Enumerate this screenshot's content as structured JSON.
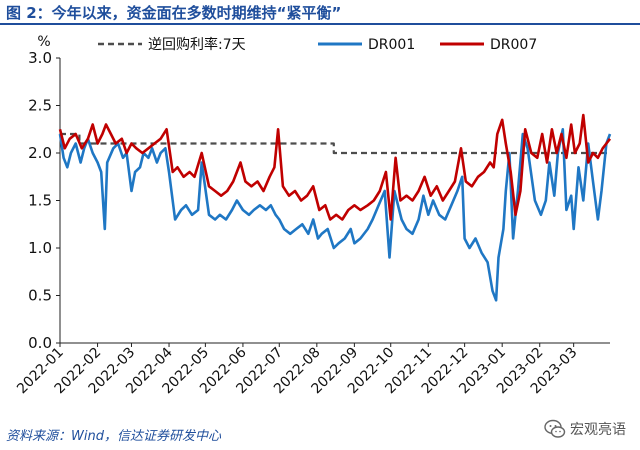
{
  "figure": {
    "title": "图 2：今年以来，资金面在多数时期维持“紧平衡”",
    "source": "资料来源：Wind，信达证券研发中心",
    "watermark": "宏观亮语",
    "watermark_icon": "wechat-icon"
  },
  "chart_data": {
    "type": "line",
    "unit_label": "%",
    "ylim": [
      0.0,
      3.0
    ],
    "yticks": [
      "0.0",
      "0.5",
      "1.0",
      "1.5",
      "2.0",
      "2.5",
      "3.0"
    ],
    "xlim": [
      "2022-01-01",
      "2023-03-31"
    ],
    "xticks": [
      "2022-01",
      "2022-02",
      "2022-03",
      "2022-04",
      "2022-05",
      "2022-06",
      "2022-07",
      "2022-08",
      "2022-09",
      "2022-10",
      "2022-11",
      "2022-12",
      "2023-01",
      "2023-02",
      "2023-03"
    ],
    "grid": false,
    "legend_position": "top",
    "series": [
      {
        "name": "逆回购利率:7天",
        "color": "#4d4d4d",
        "style": "dashed",
        "points": [
          [
            "2022-01-01",
            2.2
          ],
          [
            "2022-01-17",
            2.2
          ],
          [
            "2022-01-17",
            2.1
          ],
          [
            "2022-08-15",
            2.1
          ],
          [
            "2022-08-15",
            2.0
          ],
          [
            "2023-03-31",
            2.0
          ]
        ]
      },
      {
        "name": "DR001",
        "color": "#1f77c4",
        "style": "solid",
        "points": [
          [
            "2022-01-01",
            2.2
          ],
          [
            "2022-01-04",
            1.95
          ],
          [
            "2022-01-07",
            1.85
          ],
          [
            "2022-01-10",
            2.0
          ],
          [
            "2022-01-14",
            2.1
          ],
          [
            "2022-01-18",
            1.9
          ],
          [
            "2022-01-21",
            2.05
          ],
          [
            "2022-01-24",
            2.15
          ],
          [
            "2022-01-28",
            2.0
          ],
          [
            "2022-02-01",
            1.9
          ],
          [
            "2022-02-04",
            1.8
          ],
          [
            "2022-02-07",
            1.2
          ],
          [
            "2022-02-09",
            1.9
          ],
          [
            "2022-02-14",
            2.05
          ],
          [
            "2022-02-18",
            2.1
          ],
          [
            "2022-02-22",
            1.95
          ],
          [
            "2022-02-25",
            2.0
          ],
          [
            "2022-03-01",
            1.6
          ],
          [
            "2022-03-04",
            1.8
          ],
          [
            "2022-03-08",
            1.85
          ],
          [
            "2022-03-11",
            2.0
          ],
          [
            "2022-03-15",
            1.95
          ],
          [
            "2022-03-18",
            2.05
          ],
          [
            "2022-03-22",
            1.9
          ],
          [
            "2022-03-25",
            2.0
          ],
          [
            "2022-03-29",
            2.05
          ],
          [
            "2022-04-01",
            1.8
          ],
          [
            "2022-04-06",
            1.3
          ],
          [
            "2022-04-11",
            1.4
          ],
          [
            "2022-04-15",
            1.45
          ],
          [
            "2022-04-20",
            1.35
          ],
          [
            "2022-04-25",
            1.4
          ],
          [
            "2022-04-28",
            1.9
          ],
          [
            "2022-05-04",
            1.35
          ],
          [
            "2022-05-09",
            1.3
          ],
          [
            "2022-05-13",
            1.35
          ],
          [
            "2022-05-18",
            1.3
          ],
          [
            "2022-05-23",
            1.4
          ],
          [
            "2022-05-27",
            1.5
          ],
          [
            "2022-06-01",
            1.4
          ],
          [
            "2022-06-06",
            1.35
          ],
          [
            "2022-06-10",
            1.4
          ],
          [
            "2022-06-15",
            1.45
          ],
          [
            "2022-06-20",
            1.4
          ],
          [
            "2022-06-24",
            1.45
          ],
          [
            "2022-06-28",
            1.35
          ],
          [
            "2022-07-01",
            1.3
          ],
          [
            "2022-07-05",
            1.2
          ],
          [
            "2022-07-10",
            1.15
          ],
          [
            "2022-07-15",
            1.2
          ],
          [
            "2022-07-20",
            1.25
          ],
          [
            "2022-07-25",
            1.15
          ],
          [
            "2022-07-29",
            1.3
          ],
          [
            "2022-08-02",
            1.1
          ],
          [
            "2022-08-05",
            1.15
          ],
          [
            "2022-08-10",
            1.2
          ],
          [
            "2022-08-15",
            1.0
          ],
          [
            "2022-08-19",
            1.05
          ],
          [
            "2022-08-24",
            1.1
          ],
          [
            "2022-08-29",
            1.2
          ],
          [
            "2022-09-01",
            1.05
          ],
          [
            "2022-09-06",
            1.1
          ],
          [
            "2022-09-12",
            1.2
          ],
          [
            "2022-09-16",
            1.3
          ],
          [
            "2022-09-21",
            1.45
          ],
          [
            "2022-09-26",
            1.6
          ],
          [
            "2022-09-30",
            0.9
          ],
          [
            "2022-10-04",
            1.6
          ],
          [
            "2022-10-10",
            1.3
          ],
          [
            "2022-10-14",
            1.2
          ],
          [
            "2022-10-19",
            1.15
          ],
          [
            "2022-10-24",
            1.3
          ],
          [
            "2022-10-28",
            1.55
          ],
          [
            "2022-11-01",
            1.35
          ],
          [
            "2022-11-05",
            1.5
          ],
          [
            "2022-11-10",
            1.35
          ],
          [
            "2022-11-15",
            1.3
          ],
          [
            "2022-11-20",
            1.45
          ],
          [
            "2022-11-25",
            1.6
          ],
          [
            "2022-11-29",
            1.75
          ],
          [
            "2022-12-01",
            1.1
          ],
          [
            "2022-12-05",
            1.0
          ],
          [
            "2022-12-10",
            1.1
          ],
          [
            "2022-12-15",
            0.95
          ],
          [
            "2022-12-20",
            0.85
          ],
          [
            "2022-12-24",
            0.55
          ],
          [
            "2022-12-27",
            0.45
          ],
          [
            "2022-12-29",
            0.9
          ],
          [
            "2023-01-02",
            1.2
          ],
          [
            "2023-01-04",
            1.6
          ],
          [
            "2023-01-07",
            2.0
          ],
          [
            "2023-01-10",
            1.1
          ],
          [
            "2023-01-14",
            1.6
          ],
          [
            "2023-01-18",
            2.2
          ],
          [
            "2023-01-22",
            2.05
          ],
          [
            "2023-01-28",
            1.5
          ],
          [
            "2023-02-02",
            1.35
          ],
          [
            "2023-02-06",
            1.5
          ],
          [
            "2023-02-09",
            1.9
          ],
          [
            "2023-02-13",
            1.55
          ],
          [
            "2023-02-16",
            2.0
          ],
          [
            "2023-02-20",
            2.25
          ],
          [
            "2023-02-23",
            1.4
          ],
          [
            "2023-02-27",
            1.55
          ],
          [
            "2023-03-01",
            1.2
          ],
          [
            "2023-03-05",
            1.85
          ],
          [
            "2023-03-09",
            1.5
          ],
          [
            "2023-03-13",
            2.1
          ],
          [
            "2023-03-17",
            1.7
          ],
          [
            "2023-03-21",
            1.3
          ],
          [
            "2023-03-24",
            1.6
          ],
          [
            "2023-03-28",
            2.1
          ],
          [
            "2023-03-31",
            2.2
          ]
        ]
      },
      {
        "name": "DR007",
        "color": "#c00000",
        "style": "solid",
        "points": [
          [
            "2022-01-01",
            2.25
          ],
          [
            "2022-01-05",
            2.05
          ],
          [
            "2022-01-09",
            2.15
          ],
          [
            "2022-01-14",
            2.2
          ],
          [
            "2022-01-19",
            2.05
          ],
          [
            "2022-01-24",
            2.15
          ],
          [
            "2022-01-28",
            2.3
          ],
          [
            "2022-02-01",
            2.1
          ],
          [
            "2022-02-05",
            2.2
          ],
          [
            "2022-02-08",
            2.3
          ],
          [
            "2022-02-12",
            2.2
          ],
          [
            "2022-02-16",
            2.1
          ],
          [
            "2022-02-21",
            2.15
          ],
          [
            "2022-02-25",
            2.0
          ],
          [
            "2022-03-01",
            2.1
          ],
          [
            "2022-03-05",
            2.05
          ],
          [
            "2022-03-10",
            2.0
          ],
          [
            "2022-03-15",
            2.05
          ],
          [
            "2022-03-20",
            2.1
          ],
          [
            "2022-03-25",
            2.15
          ],
          [
            "2022-03-30",
            2.25
          ],
          [
            "2022-04-04",
            1.8
          ],
          [
            "2022-04-08",
            1.85
          ],
          [
            "2022-04-13",
            1.75
          ],
          [
            "2022-04-18",
            1.8
          ],
          [
            "2022-04-22",
            1.75
          ],
          [
            "2022-04-28",
            2.0
          ],
          [
            "2022-05-04",
            1.65
          ],
          [
            "2022-05-09",
            1.6
          ],
          [
            "2022-05-14",
            1.55
          ],
          [
            "2022-05-19",
            1.6
          ],
          [
            "2022-05-24",
            1.7
          ],
          [
            "2022-05-30",
            1.9
          ],
          [
            "2022-06-03",
            1.7
          ],
          [
            "2022-06-08",
            1.65
          ],
          [
            "2022-06-13",
            1.7
          ],
          [
            "2022-06-18",
            1.6
          ],
          [
            "2022-06-23",
            1.75
          ],
          [
            "2022-06-27",
            1.85
          ],
          [
            "2022-06-30",
            2.25
          ],
          [
            "2022-07-04",
            1.65
          ],
          [
            "2022-07-09",
            1.55
          ],
          [
            "2022-07-14",
            1.6
          ],
          [
            "2022-07-19",
            1.5
          ],
          [
            "2022-07-24",
            1.55
          ],
          [
            "2022-07-29",
            1.65
          ],
          [
            "2022-08-03",
            1.4
          ],
          [
            "2022-08-08",
            1.45
          ],
          [
            "2022-08-12",
            1.3
          ],
          [
            "2022-08-17",
            1.35
          ],
          [
            "2022-08-22",
            1.3
          ],
          [
            "2022-08-27",
            1.4
          ],
          [
            "2022-09-01",
            1.45
          ],
          [
            "2022-09-06",
            1.4
          ],
          [
            "2022-09-12",
            1.45
          ],
          [
            "2022-09-17",
            1.5
          ],
          [
            "2022-09-22",
            1.6
          ],
          [
            "2022-09-27",
            1.8
          ],
          [
            "2022-10-01",
            1.3
          ],
          [
            "2022-10-05",
            1.95
          ],
          [
            "2022-10-09",
            1.5
          ],
          [
            "2022-10-14",
            1.55
          ],
          [
            "2022-10-19",
            1.5
          ],
          [
            "2022-10-24",
            1.6
          ],
          [
            "2022-10-29",
            1.75
          ],
          [
            "2022-11-03",
            1.55
          ],
          [
            "2022-11-08",
            1.65
          ],
          [
            "2022-11-13",
            1.5
          ],
          [
            "2022-11-18",
            1.6
          ],
          [
            "2022-11-23",
            1.7
          ],
          [
            "2022-11-28",
            2.05
          ],
          [
            "2022-12-02",
            1.7
          ],
          [
            "2022-12-07",
            1.65
          ],
          [
            "2022-12-12",
            1.75
          ],
          [
            "2022-12-17",
            1.8
          ],
          [
            "2022-12-22",
            1.9
          ],
          [
            "2022-12-25",
            1.85
          ],
          [
            "2022-12-28",
            2.2
          ],
          [
            "2023-01-01",
            2.35
          ],
          [
            "2023-01-04",
            2.1
          ],
          [
            "2023-01-08",
            1.8
          ],
          [
            "2023-01-12",
            1.35
          ],
          [
            "2023-01-16",
            1.6
          ],
          [
            "2023-01-20",
            2.25
          ],
          [
            "2023-01-25",
            2.0
          ],
          [
            "2023-01-30",
            1.95
          ],
          [
            "2023-02-03",
            2.2
          ],
          [
            "2023-02-07",
            1.9
          ],
          [
            "2023-02-11",
            2.25
          ],
          [
            "2023-02-15",
            2.0
          ],
          [
            "2023-02-19",
            2.2
          ],
          [
            "2023-02-23",
            1.95
          ],
          [
            "2023-02-27",
            2.3
          ],
          [
            "2023-03-02",
            2.0
          ],
          [
            "2023-03-06",
            2.1
          ],
          [
            "2023-03-09",
            2.4
          ],
          [
            "2023-03-13",
            1.9
          ],
          [
            "2023-03-17",
            2.0
          ],
          [
            "2023-03-21",
            1.95
          ],
          [
            "2023-03-25",
            2.05
          ],
          [
            "2023-03-28",
            2.1
          ],
          [
            "2023-03-31",
            2.15
          ]
        ]
      }
    ]
  }
}
